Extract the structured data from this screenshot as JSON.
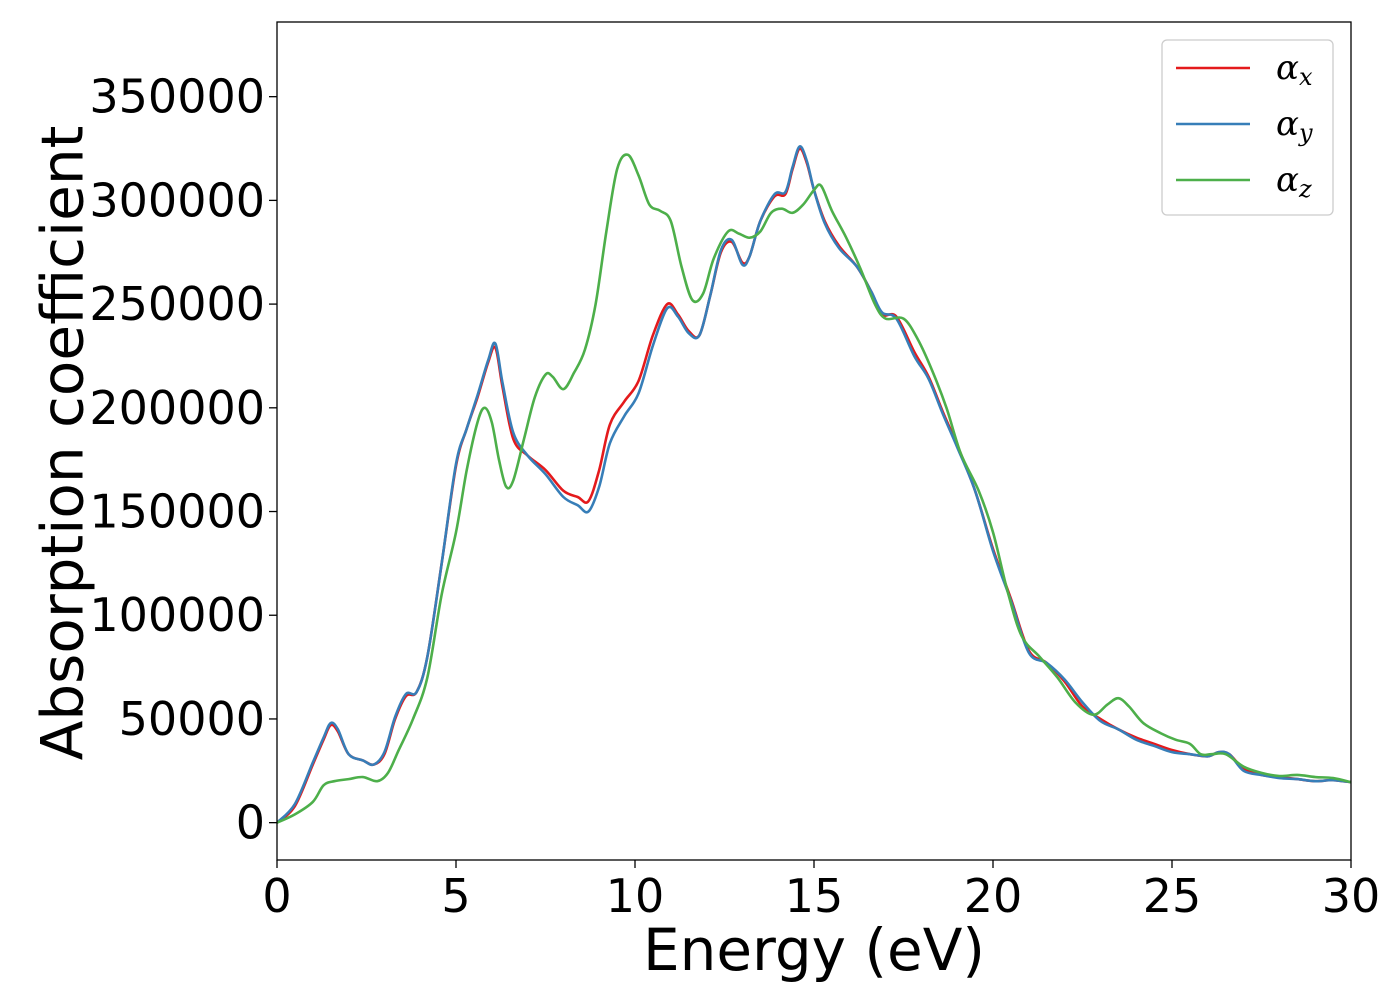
{
  "chart_data": {
    "type": "line",
    "xlabel": "Energy (eV)",
    "ylabel": "Absorption coefficient",
    "xlim": [
      0,
      30
    ],
    "ylim": [
      -18000,
      386000
    ],
    "xticks": [
      0,
      5,
      10,
      15,
      20,
      25,
      30
    ],
    "yticks": [
      0,
      50000,
      100000,
      150000,
      200000,
      250000,
      300000,
      350000
    ],
    "x_tick_labels": [
      "0",
      "5",
      "10",
      "15",
      "20",
      "25",
      "30"
    ],
    "y_tick_labels": [
      "0",
      "50000",
      "100000",
      "150000",
      "200000",
      "250000",
      "300000",
      "350000"
    ],
    "grid": false,
    "legend_position": "top-right",
    "series": [
      {
        "name": "α_x",
        "label_base": "α",
        "label_sub": "x",
        "color": "#e41a1c",
        "points": [
          [
            0,
            0
          ],
          [
            0.5,
            8000
          ],
          [
            1,
            28000
          ],
          [
            1.3,
            40000
          ],
          [
            1.5,
            47000
          ],
          [
            1.7,
            44000
          ],
          [
            2,
            33000
          ],
          [
            2.4,
            30000
          ],
          [
            2.7,
            28000
          ],
          [
            3,
            33000
          ],
          [
            3.3,
            50000
          ],
          [
            3.6,
            61000
          ],
          [
            3.9,
            63000
          ],
          [
            4.2,
            80000
          ],
          [
            4.6,
            125000
          ],
          [
            5,
            172000
          ],
          [
            5.3,
            190000
          ],
          [
            5.6,
            205000
          ],
          [
            5.9,
            222000
          ],
          [
            6.1,
            229000
          ],
          [
            6.3,
            210000
          ],
          [
            6.6,
            185000
          ],
          [
            7,
            177000
          ],
          [
            7.5,
            170000
          ],
          [
            8,
            160000
          ],
          [
            8.4,
            157000
          ],
          [
            8.7,
            155000
          ],
          [
            9,
            170000
          ],
          [
            9.3,
            192000
          ],
          [
            9.7,
            203000
          ],
          [
            10.1,
            213000
          ],
          [
            10.5,
            235000
          ],
          [
            10.9,
            250000
          ],
          [
            11.2,
            245000
          ],
          [
            11.5,
            237000
          ],
          [
            11.8,
            235000
          ],
          [
            12.1,
            254000
          ],
          [
            12.4,
            275000
          ],
          [
            12.7,
            280000
          ],
          [
            13,
            270000
          ],
          [
            13.2,
            273000
          ],
          [
            13.5,
            290000
          ],
          [
            13.9,
            302000
          ],
          [
            14.2,
            303000
          ],
          [
            14.4,
            315000
          ],
          [
            14.6,
            325000
          ],
          [
            14.8,
            318000
          ],
          [
            15,
            305000
          ],
          [
            15.3,
            290000
          ],
          [
            15.7,
            278000
          ],
          [
            16.2,
            268000
          ],
          [
            16.6,
            256000
          ],
          [
            16.9,
            245000
          ],
          [
            17.3,
            244000
          ],
          [
            17.8,
            227000
          ],
          [
            18.2,
            215000
          ],
          [
            18.6,
            198000
          ],
          [
            19,
            182000
          ],
          [
            19.5,
            160000
          ],
          [
            20,
            132000
          ],
          [
            20.5,
            108000
          ],
          [
            21,
            83000
          ],
          [
            21.5,
            77000
          ],
          [
            22,
            68000
          ],
          [
            22.5,
            56000
          ],
          [
            23,
            50000
          ],
          [
            23.5,
            45000
          ],
          [
            24,
            41000
          ],
          [
            24.5,
            38000
          ],
          [
            25,
            35000
          ],
          [
            25.5,
            33000
          ],
          [
            26,
            32000
          ],
          [
            26.3,
            34000
          ],
          [
            26.6,
            33000
          ],
          [
            27,
            26000
          ],
          [
            27.5,
            23000
          ],
          [
            28,
            22000
          ],
          [
            28.5,
            21000
          ],
          [
            29,
            20000
          ],
          [
            29.5,
            20500
          ],
          [
            30,
            19500
          ]
        ]
      },
      {
        "name": "α_y",
        "label_base": "α",
        "label_sub": "y",
        "color": "#377eb8",
        "points": [
          [
            0,
            0
          ],
          [
            0.5,
            9000
          ],
          [
            1,
            29000
          ],
          [
            1.3,
            41000
          ],
          [
            1.5,
            48000
          ],
          [
            1.7,
            45000
          ],
          [
            2,
            33000
          ],
          [
            2.4,
            30000
          ],
          [
            2.7,
            28000
          ],
          [
            3,
            34000
          ],
          [
            3.3,
            51000
          ],
          [
            3.6,
            62000
          ],
          [
            3.9,
            63000
          ],
          [
            4.2,
            80000
          ],
          [
            4.6,
            125000
          ],
          [
            5,
            173000
          ],
          [
            5.3,
            190000
          ],
          [
            5.6,
            206000
          ],
          [
            5.9,
            223000
          ],
          [
            6.1,
            231000
          ],
          [
            6.3,
            212000
          ],
          [
            6.6,
            188000
          ],
          [
            7,
            177000
          ],
          [
            7.5,
            168000
          ],
          [
            8,
            157000
          ],
          [
            8.4,
            153000
          ],
          [
            8.7,
            150000
          ],
          [
            9,
            162000
          ],
          [
            9.3,
            183000
          ],
          [
            9.7,
            196000
          ],
          [
            10.1,
            207000
          ],
          [
            10.5,
            230000
          ],
          [
            10.9,
            248000
          ],
          [
            11.2,
            244000
          ],
          [
            11.5,
            236000
          ],
          [
            11.8,
            235000
          ],
          [
            12.1,
            254000
          ],
          [
            12.4,
            276000
          ],
          [
            12.7,
            281000
          ],
          [
            13,
            269000
          ],
          [
            13.2,
            273000
          ],
          [
            13.5,
            290000
          ],
          [
            13.9,
            303000
          ],
          [
            14.2,
            304000
          ],
          [
            14.4,
            316000
          ],
          [
            14.6,
            326000
          ],
          [
            14.8,
            319000
          ],
          [
            15,
            305000
          ],
          [
            15.3,
            289000
          ],
          [
            15.7,
            277000
          ],
          [
            16.2,
            268000
          ],
          [
            16.6,
            256000
          ],
          [
            16.9,
            246000
          ],
          [
            17.3,
            243000
          ],
          [
            17.8,
            225000
          ],
          [
            18.2,
            214000
          ],
          [
            18.6,
            197000
          ],
          [
            19,
            181000
          ],
          [
            19.5,
            160000
          ],
          [
            20,
            131000
          ],
          [
            20.5,
            107000
          ],
          [
            21,
            82000
          ],
          [
            21.5,
            77000
          ],
          [
            22,
            69000
          ],
          [
            22.5,
            58000
          ],
          [
            23,
            49000
          ],
          [
            23.5,
            45000
          ],
          [
            24,
            40000
          ],
          [
            24.5,
            37000
          ],
          [
            25,
            34000
          ],
          [
            25.5,
            33000
          ],
          [
            26,
            32000
          ],
          [
            26.3,
            34000
          ],
          [
            26.6,
            33000
          ],
          [
            27,
            25000
          ],
          [
            27.5,
            23000
          ],
          [
            28,
            21500
          ],
          [
            28.5,
            21000
          ],
          [
            29,
            20000
          ],
          [
            29.5,
            20500
          ],
          [
            30,
            19500
          ]
        ]
      },
      {
        "name": "α_z",
        "label_base": "α",
        "label_sub": "z",
        "color": "#4daf4a",
        "points": [
          [
            0,
            0
          ],
          [
            0.5,
            4000
          ],
          [
            1,
            10000
          ],
          [
            1.3,
            18000
          ],
          [
            1.6,
            20000
          ],
          [
            2,
            21000
          ],
          [
            2.4,
            22000
          ],
          [
            2.8,
            20000
          ],
          [
            3.1,
            24000
          ],
          [
            3.4,
            35000
          ],
          [
            3.8,
            50000
          ],
          [
            4.2,
            70000
          ],
          [
            4.6,
            110000
          ],
          [
            5,
            140000
          ],
          [
            5.3,
            170000
          ],
          [
            5.6,
            193000
          ],
          [
            5.8,
            200000
          ],
          [
            6,
            193000
          ],
          [
            6.2,
            175000
          ],
          [
            6.4,
            162000
          ],
          [
            6.6,
            165000
          ],
          [
            6.9,
            185000
          ],
          [
            7.2,
            205000
          ],
          [
            7.5,
            216000
          ],
          [
            7.7,
            215000
          ],
          [
            8,
            209000
          ],
          [
            8.3,
            217000
          ],
          [
            8.6,
            228000
          ],
          [
            8.9,
            250000
          ],
          [
            9.2,
            285000
          ],
          [
            9.5,
            315000
          ],
          [
            9.8,
            322000
          ],
          [
            10.1,
            312000
          ],
          [
            10.4,
            298000
          ],
          [
            10.7,
            295000
          ],
          [
            11,
            290000
          ],
          [
            11.3,
            268000
          ],
          [
            11.6,
            252000
          ],
          [
            11.9,
            255000
          ],
          [
            12.2,
            272000
          ],
          [
            12.6,
            285000
          ],
          [
            12.9,
            284000
          ],
          [
            13.2,
            282000
          ],
          [
            13.5,
            285000
          ],
          [
            13.8,
            294000
          ],
          [
            14.1,
            296000
          ],
          [
            14.4,
            294000
          ],
          [
            14.7,
            298000
          ],
          [
            15,
            305000
          ],
          [
            15.2,
            307000
          ],
          [
            15.5,
            295000
          ],
          [
            15.9,
            282000
          ],
          [
            16.3,
            267000
          ],
          [
            16.7,
            250000
          ],
          [
            17,
            243000
          ],
          [
            17.5,
            243000
          ],
          [
            17.9,
            233000
          ],
          [
            18.3,
            218000
          ],
          [
            18.7,
            200000
          ],
          [
            19.1,
            178000
          ],
          [
            19.6,
            160000
          ],
          [
            20,
            140000
          ],
          [
            20.4,
            112000
          ],
          [
            20.8,
            90000
          ],
          [
            21.3,
            80000
          ],
          [
            21.8,
            70000
          ],
          [
            22.3,
            58000
          ],
          [
            22.8,
            52000
          ],
          [
            23.2,
            57000
          ],
          [
            23.5,
            60000
          ],
          [
            23.8,
            56000
          ],
          [
            24.2,
            48000
          ],
          [
            24.7,
            43000
          ],
          [
            25.1,
            40000
          ],
          [
            25.5,
            38000
          ],
          [
            25.8,
            33000
          ],
          [
            26.1,
            33000
          ],
          [
            26.5,
            33000
          ],
          [
            27,
            27000
          ],
          [
            27.5,
            24000
          ],
          [
            28,
            22500
          ],
          [
            28.5,
            23000
          ],
          [
            29,
            22000
          ],
          [
            29.5,
            21500
          ],
          [
            30,
            19500
          ]
        ]
      }
    ]
  }
}
